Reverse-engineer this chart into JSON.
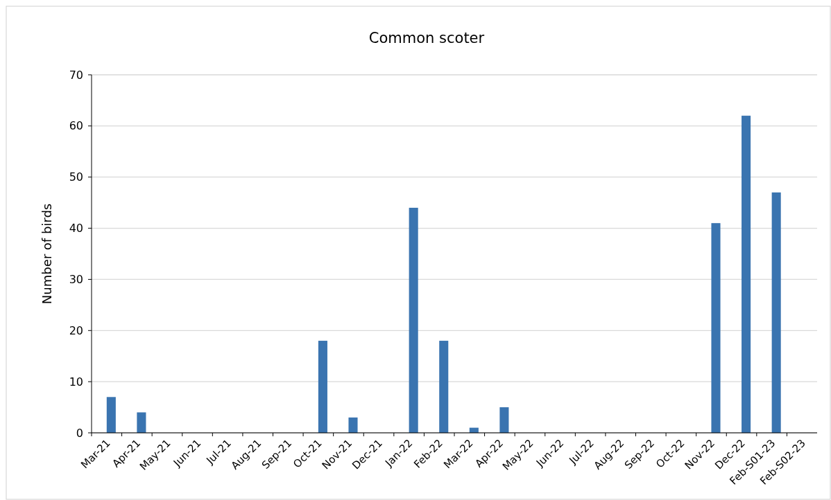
{
  "chart_data": {
    "type": "bar",
    "title": "Common scoter",
    "ylabel": "Number of birds",
    "categories": [
      "Mar-21",
      "Apr-21",
      "May-21",
      "Jun-21",
      "Jul-21",
      "Aug-21",
      "Sep-21",
      "Oct-21",
      "Nov-21",
      "Dec-21",
      "Jan-22",
      "Feb-22",
      "Mar-22",
      "Apr-22",
      "May-22",
      "Jun-22",
      "Jul-22",
      "Aug-22",
      "Sep-22",
      "Oct-22",
      "Nov-22",
      "Dec-22",
      "Feb-S01-23",
      "Feb-S02-23"
    ],
    "values": [
      7,
      4,
      0,
      0,
      0,
      0,
      0,
      18,
      3,
      0,
      44,
      18,
      1,
      5,
      0,
      0,
      0,
      0,
      0,
      0,
      41,
      62,
      47,
      0
    ],
    "color": "#3a74b0",
    "ylim": [
      0,
      70
    ],
    "yticks": [
      0,
      10,
      20,
      30,
      40,
      50,
      60,
      70
    ],
    "grid": "y"
  }
}
